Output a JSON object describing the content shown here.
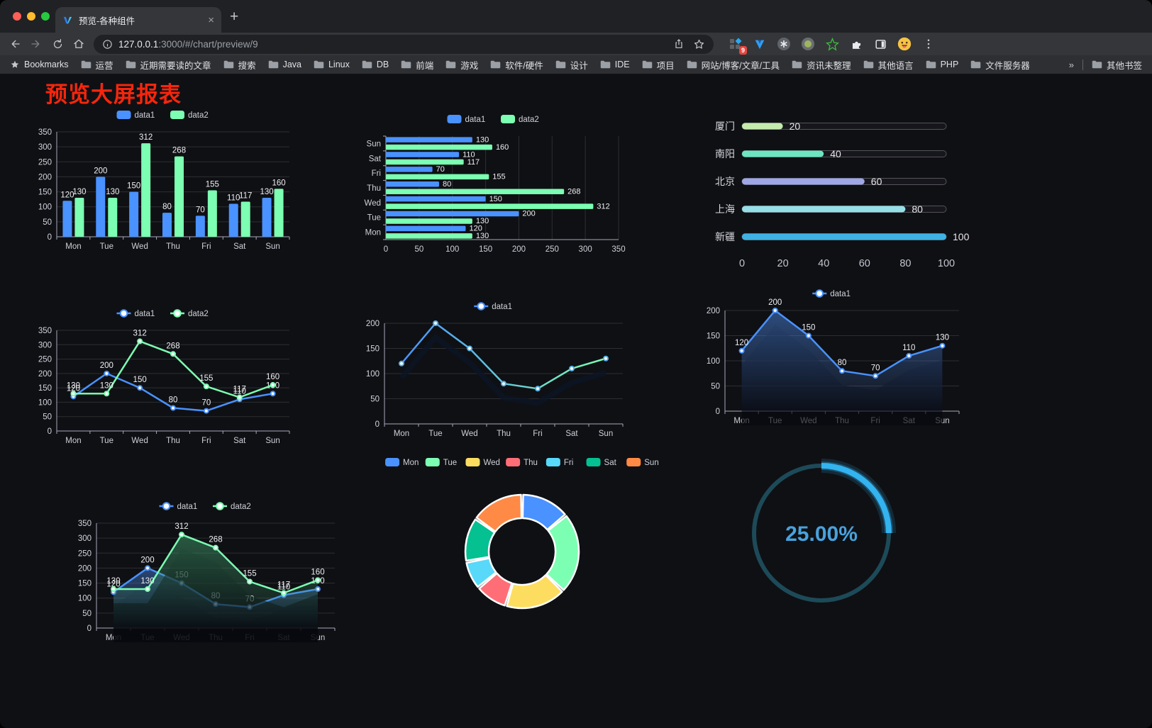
{
  "browser": {
    "tab_title": "预览-各种组件",
    "url_host": "127.0.0.1",
    "url_path": ":3000/#/chart/preview/9",
    "extension_badge": "9",
    "bookmarks_label": "Bookmarks",
    "bookmarks": [
      "运营",
      "近期需要读的文章",
      "搜索",
      "Java",
      "Linux",
      "DB",
      "前端",
      "游戏",
      "软件/硬件",
      "设计",
      "IDE",
      "项目",
      "网站/博客/文章/工具",
      "资讯未整理",
      "其他语言",
      "PHP",
      "文件服务器"
    ],
    "bookmarks_overflow": "»",
    "other_bookmarks": "其他书签",
    "new_tab_label": "+",
    "tab_close_label": "×",
    "traffic_colors": {
      "close": "#ff5f57",
      "minimize": "#febc2e",
      "maximize": "#28c840"
    },
    "icons": [
      "back-arrow-icon",
      "forward-arrow-icon",
      "reload-icon",
      "home-icon",
      "info-icon",
      "share-icon",
      "bookmark-star-icon",
      "extension-blocks-icon",
      "extension-v-icon",
      "extension-command-icon",
      "extension-record-icon",
      "extension-green-star-icon",
      "puzzle-icon",
      "sidebar-icon",
      "profile-emoji-icon",
      "kebab-menu-icon",
      "folder-icon"
    ]
  },
  "page": {
    "title": "预览大屏报表",
    "title_color": "#f5260c"
  },
  "chart_data": [
    {
      "id": "grouped-bar",
      "type": "bar",
      "legend": true,
      "value_labels": true,
      "categories": [
        "Mon",
        "Tue",
        "Wed",
        "Thu",
        "Fri",
        "Sat",
        "Sun"
      ],
      "series": [
        {
          "name": "data1",
          "color": "#4992ff",
          "values": [
            120,
            200,
            150,
            80,
            70,
            110,
            130
          ]
        },
        {
          "name": "data2",
          "color": "#7cffb2",
          "values": [
            130,
            130,
            312,
            268,
            155,
            117,
            160
          ]
        }
      ],
      "ylim": [
        0,
        350
      ],
      "ytick": 50
    },
    {
      "id": "horizontal-bar",
      "type": "hbar",
      "legend": true,
      "value_labels": true,
      "categories": [
        "Mon",
        "Tue",
        "Wed",
        "Thu",
        "Fri",
        "Sat",
        "Sun"
      ],
      "series": [
        {
          "name": "data1",
          "color": "#4992ff",
          "values": [
            120,
            200,
            150,
            80,
            70,
            110,
            130
          ]
        },
        {
          "name": "data2",
          "color": "#7cffb2",
          "values": [
            130,
            130,
            312,
            268,
            155,
            117,
            160
          ]
        }
      ],
      "xlim": [
        0,
        350
      ],
      "xtick": 50
    },
    {
      "id": "city-progress",
      "type": "progress",
      "max": 100,
      "axis_ticks": [
        0,
        20,
        40,
        60,
        80,
        100
      ],
      "rows": [
        {
          "label": "厦门",
          "value": 20,
          "color": "#c4ebad"
        },
        {
          "label": "南阳",
          "value": 40,
          "color": "#6be6c1"
        },
        {
          "label": "北京",
          "value": 60,
          "color": "#a0a7e6"
        },
        {
          "label": "上海",
          "value": 80,
          "color": "#96dee8"
        },
        {
          "label": "新疆",
          "value": 100,
          "color": "#3fb1e3"
        }
      ]
    },
    {
      "id": "two-series-line",
      "type": "line",
      "legend": true,
      "value_labels": true,
      "categories": [
        "Mon",
        "Tue",
        "Wed",
        "Thu",
        "Fri",
        "Sat",
        "Sun"
      ],
      "series": [
        {
          "name": "data1",
          "color": "#4992ff",
          "values": [
            120,
            200,
            150,
            80,
            70,
            110,
            130
          ]
        },
        {
          "name": "data2",
          "color": "#7cffb2",
          "values": [
            130,
            130,
            312,
            268,
            155,
            117,
            160
          ]
        }
      ],
      "ylim": [
        0,
        350
      ],
      "ytick": 50
    },
    {
      "id": "gradient-line",
      "type": "line",
      "legend": true,
      "value_labels": false,
      "shadow": true,
      "categories": [
        "Mon",
        "Tue",
        "Wed",
        "Thu",
        "Fri",
        "Sat",
        "Sun"
      ],
      "series": [
        {
          "name": "data1",
          "gradient": [
            "#4992ff",
            "#7cffb2"
          ],
          "values": [
            120,
            200,
            150,
            80,
            70,
            110,
            130
          ]
        }
      ],
      "ylim": [
        0,
        200
      ],
      "ytick": 50
    },
    {
      "id": "area-line",
      "type": "line",
      "legend": true,
      "value_labels": true,
      "shadow": true,
      "categories": [
        "Mon",
        "Tue",
        "Wed",
        "Thu",
        "Fri",
        "Sat",
        "Sun"
      ],
      "series": [
        {
          "name": "data1",
          "color": "#4992ff",
          "area": [
            "rgba(70,125,210,0.55)",
            "rgba(70,125,210,0.03)"
          ],
          "values": [
            120,
            200,
            150,
            80,
            70,
            110,
            130
          ]
        }
      ],
      "ylim": [
        0,
        200
      ],
      "ytick": 50
    },
    {
      "id": "two-series-area",
      "type": "line",
      "legend": true,
      "value_labels": true,
      "shadow": true,
      "categories": [
        "Mon",
        "Tue",
        "Wed",
        "Thu",
        "Fri",
        "Sat",
        "Sun"
      ],
      "series": [
        {
          "name": "data1",
          "color": "#4992ff",
          "area": [
            "rgba(70,125,210,0.50)",
            "rgba(70,125,210,0.03)"
          ],
          "values": [
            120,
            200,
            150,
            80,
            70,
            110,
            130
          ]
        },
        {
          "name": "data2",
          "color": "#7cffb2",
          "area": [
            "rgba(62,150,104,0.55)",
            "rgba(62,150,104,0.03)"
          ],
          "values": [
            130,
            130,
            312,
            268,
            155,
            117,
            160
          ]
        }
      ],
      "ylim": [
        0,
        350
      ],
      "ytick": 50
    },
    {
      "id": "donut-pie",
      "type": "pie",
      "legend": true,
      "items": [
        {
          "name": "Mon",
          "value": 120,
          "color": "#4992ff"
        },
        {
          "name": "Tue",
          "value": 200,
          "color": "#7cffb2"
        },
        {
          "name": "Wed",
          "value": 150,
          "color": "#fddd60"
        },
        {
          "name": "Thu",
          "value": 80,
          "color": "#ff6e76"
        },
        {
          "name": "Fri",
          "value": 70,
          "color": "#58d9f9"
        },
        {
          "name": "Sat",
          "value": 110,
          "color": "#05c091"
        },
        {
          "name": "Sun",
          "value": 130,
          "color": "#ff8a45"
        }
      ]
    },
    {
      "id": "progress-gauge",
      "type": "gauge",
      "value": 25,
      "label": "25.00%",
      "color": "#33b3f0",
      "track": "#1d4a58",
      "text_color": "#48a2dc"
    }
  ]
}
